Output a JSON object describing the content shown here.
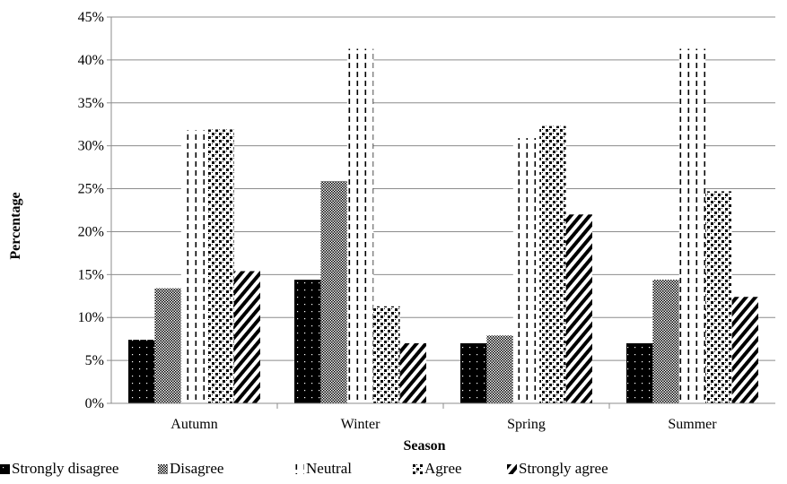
{
  "chart_data": {
    "type": "bar",
    "categories": [
      "Autumn",
      "Winter",
      "Spring",
      "Summer"
    ],
    "series": [
      {
        "name": "Strongly disagree",
        "values": [
          7.4,
          14.4,
          7.0,
          7.0
        ],
        "pattern": "dots-on-black"
      },
      {
        "name": "Disagree",
        "values": [
          13.4,
          25.9,
          7.9,
          14.4
        ],
        "pattern": "checker"
      },
      {
        "name": "Neutral",
        "values": [
          31.8,
          41.3,
          30.9,
          41.3
        ],
        "pattern": "dashed-vertical"
      },
      {
        "name": "Agree",
        "values": [
          31.9,
          11.3,
          32.3,
          24.7
        ],
        "pattern": "large-checker"
      },
      {
        "name": "Strongly agree",
        "values": [
          15.4,
          7.0,
          22.0,
          12.4
        ],
        "pattern": "diagonal"
      }
    ],
    "xlabel": "Season",
    "ylabel": "Percentage",
    "yticks": [
      "0%",
      "5%",
      "10%",
      "15%",
      "20%",
      "25%",
      "30%",
      "35%",
      "40%",
      "45%"
    ],
    "ylim": [
      0,
      45
    ],
    "grid": true,
    "legend": "bottom"
  }
}
